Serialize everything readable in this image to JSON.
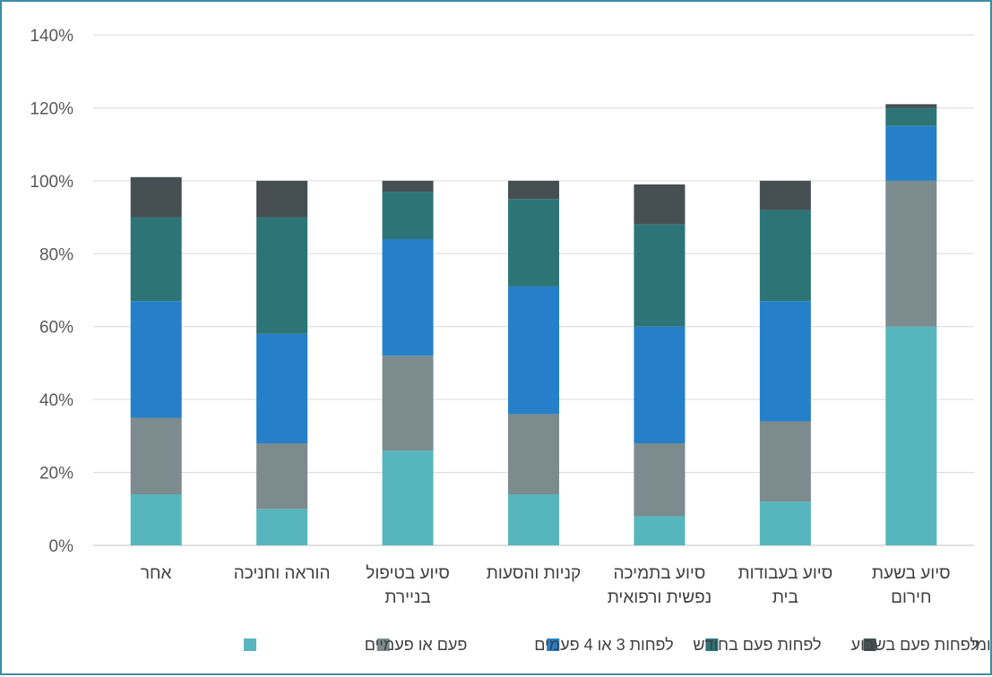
{
  "chart_data": {
    "type": "bar",
    "stacked": true,
    "categories": [
      [
        "סיוע בשעת",
        "חירום"
      ],
      [
        "סיוע בעבודות",
        "בית"
      ],
      [
        "סיוע בתמיכה",
        "נפשית ורפואית"
      ],
      [
        "קניות והסעות"
      ],
      [
        "סיוע בטיפול",
        "בניירת"
      ],
      [
        "הוראה וחניכה"
      ],
      [
        "אחר"
      ]
    ],
    "series": [
      {
        "name": "פעם או פעמיים",
        "color": "#57b6bd",
        "values": [
          60,
          12,
          8,
          14,
          26,
          10,
          14
        ]
      },
      {
        "name": "לפחות 3 או 4 פעמים",
        "color": "#7b8b8e",
        "values": [
          40,
          22,
          20,
          22,
          26,
          18,
          21
        ]
      },
      {
        "name": "לפחות פעם בחודש",
        "color": "#2580c9",
        "values": [
          15,
          33,
          32,
          35,
          32,
          30,
          32
        ]
      },
      {
        "name": "לפחות פעם בשבוע",
        "color": "#2d7477",
        "values": [
          5,
          25,
          28,
          24,
          13,
          32,
          23
        ]
      },
      {
        "name": "באופן יום יומי",
        "color": "#464f52",
        "values": [
          1,
          8,
          11,
          5,
          3,
          10,
          11
        ]
      }
    ],
    "y_ticks": [
      "0%",
      "20%",
      "40%",
      "60%",
      "80%",
      "100%",
      "120%",
      "140%"
    ],
    "ylim": [
      0,
      140
    ],
    "y_unit": "%",
    "grid": true,
    "legend_position": "bottom",
    "legend_order": [
      4,
      3,
      2,
      1,
      0
    ],
    "title": "",
    "xlabel": "",
    "ylabel": ""
  }
}
